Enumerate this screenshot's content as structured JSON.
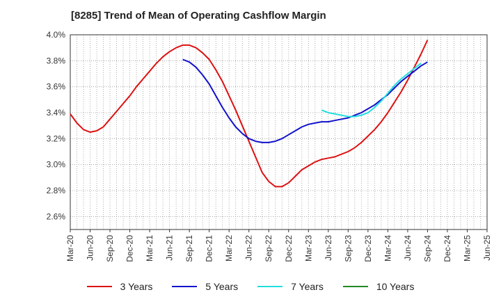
{
  "title": "[8285]  Trend of Mean of Operating Cashflow Margin",
  "chart_data": {
    "type": "line",
    "title": "[8285]  Trend of Mean of Operating Cashflow Margin",
    "xlabel": "",
    "ylabel": "",
    "x_ticks": [
      "Mar-20",
      "Jun-20",
      "Sep-20",
      "Dec-20",
      "Mar-21",
      "Jun-21",
      "Sep-21",
      "Dec-21",
      "Mar-22",
      "Jun-22",
      "Sep-22",
      "Dec-22",
      "Mar-23",
      "Jun-23",
      "Sep-23",
      "Dec-23",
      "Mar-24",
      "Jun-24",
      "Sep-24",
      "Dec-24",
      "Mar-25",
      "Jun-25"
    ],
    "y_ticks": [
      "2.6%",
      "2.8%",
      "3.0%",
      "3.2%",
      "3.4%",
      "3.6%",
      "3.8%",
      "4.0%"
    ],
    "ylim": [
      2.5,
      4.0
    ],
    "grid": true,
    "legend_position": "bottom",
    "series": [
      {
        "name": "3 Years",
        "color": "#dd1111",
        "values": [
          3.39,
          3.32,
          3.27,
          3.25,
          3.26,
          3.29,
          3.35,
          3.41,
          3.47,
          3.53,
          3.6,
          3.66,
          3.72,
          3.78,
          3.83,
          3.87,
          3.9,
          3.92,
          3.92,
          3.9,
          3.86,
          3.81,
          3.73,
          3.64,
          3.53,
          3.42,
          3.3,
          3.18,
          3.06,
          2.94,
          2.87,
          2.83,
          2.83,
          2.86,
          2.91,
          2.96,
          2.99,
          3.02,
          3.04,
          3.05,
          3.06,
          3.08,
          3.1,
          3.13,
          3.17,
          3.22,
          3.27,
          3.33,
          3.4,
          3.48,
          3.56,
          3.65,
          3.75,
          3.85,
          3.96
        ]
      },
      {
        "name": "5 Years",
        "color": "#1111cc",
        "values": [
          null,
          null,
          null,
          null,
          null,
          null,
          null,
          null,
          null,
          null,
          null,
          null,
          null,
          null,
          null,
          null,
          null,
          3.81,
          3.79,
          3.75,
          3.69,
          3.62,
          3.53,
          3.44,
          3.36,
          3.29,
          3.24,
          3.2,
          3.18,
          3.17,
          3.17,
          3.18,
          3.2,
          3.23,
          3.26,
          3.29,
          3.31,
          3.32,
          3.33,
          3.33,
          3.34,
          3.35,
          3.36,
          3.38,
          3.4,
          3.43,
          3.46,
          3.5,
          3.54,
          3.59,
          3.64,
          3.68,
          3.72,
          3.76,
          3.79
        ]
      },
      {
        "name": "7 Years",
        "color": "#22dddd",
        "values": [
          null,
          null,
          null,
          null,
          null,
          null,
          null,
          null,
          null,
          null,
          null,
          null,
          null,
          null,
          null,
          null,
          null,
          null,
          null,
          null,
          null,
          null,
          null,
          null,
          null,
          null,
          null,
          null,
          null,
          null,
          null,
          null,
          null,
          null,
          null,
          null,
          null,
          null,
          3.42,
          3.4,
          3.39,
          3.38,
          3.37,
          3.37,
          3.38,
          3.4,
          3.44,
          3.49,
          3.55,
          3.61,
          3.66,
          3.7,
          3.74,
          3.78
        ]
      },
      {
        "name": "10 Years",
        "color": "#228822",
        "values": []
      }
    ]
  }
}
